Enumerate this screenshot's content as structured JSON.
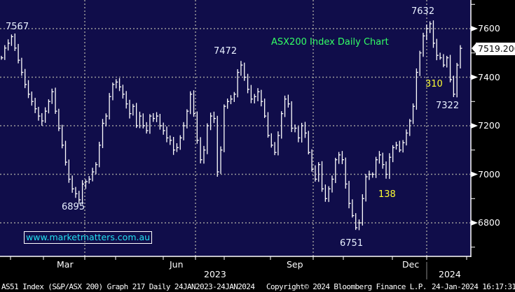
{
  "chart_data": {
    "type": "line",
    "title": "ASX200 Index Daily Chart",
    "ylim": [
      6662,
      7718
    ],
    "yticks": [
      6800,
      7000,
      7200,
      7400,
      7600
    ],
    "yticks_labels": [
      "6800",
      "7000",
      "7200",
      "7400",
      "7600"
    ],
    "xticks_labels": [
      "Mar",
      "Jun",
      "Sep",
      "Dec"
    ],
    "year_labels": [
      "2023",
      "2024"
    ],
    "grid": true,
    "last_price": "7519.200",
    "closes": [
      7480,
      7520,
      7540,
      7567,
      7520,
      7470,
      7420,
      7370,
      7330,
      7300,
      7270,
      7240,
      7220,
      7260,
      7300,
      7340,
      7260,
      7190,
      7120,
      7050,
      6980,
      6940,
      6920,
      6895,
      6960,
      6970,
      6980,
      7010,
      7040,
      7120,
      7210,
      7240,
      7320,
      7370,
      7380,
      7360,
      7330,
      7290,
      7250,
      7280,
      7200,
      7240,
      7200,
      7180,
      7240,
      7230,
      7240,
      7200,
      7180,
      7150,
      7140,
      7100,
      7110,
      7150,
      7200,
      7260,
      7330,
      7250,
      7140,
      7060,
      7100,
      7200,
      7240,
      7230,
      7010,
      7100,
      7280,
      7300,
      7310,
      7330,
      7420,
      7450,
      7400,
      7350,
      7310,
      7320,
      7340,
      7300,
      7240,
      7160,
      7120,
      7090,
      7160,
      7250,
      7310,
      7290,
      7190,
      7190,
      7150,
      7200,
      7170,
      7090,
      7020,
      6980,
      7040,
      6940,
      6900,
      6940,
      6980,
      7060,
      7080,
      7060,
      6960,
      6880,
      6830,
      6780,
      6800,
      6900,
      6990,
      7000,
      7000,
      7060,
      7080,
      7040,
      7000,
      7070,
      7110,
      7120,
      7100,
      7130,
      7170,
      7220,
      7280,
      7420,
      7500,
      7570,
      7600,
      7620,
      7540,
      7490,
      7480,
      7450,
      7480,
      7390,
      7330,
      7450,
      7519
    ],
    "annotations": {
      "high_jan": "7567",
      "low_mar": "6895",
      "high_jul": "7472",
      "low_oct": "6751",
      "high_dec": "7632",
      "low_jan": "7322",
      "move_310": "310",
      "move_138": "138"
    }
  },
  "watermark": "www.marketmatters.com.au",
  "footer": {
    "security": "AS51 Index (S&P/ASX 200) Graph 217  Daily 24JAN2023-24JAN2024",
    "copyright": "Copyright© 2024 Bloomberg Finance L.P.",
    "timestamp": "24-Jan-2024 16:17:31"
  },
  "colors": {
    "background": "#100d4a",
    "price": "#ffffff",
    "title": "#33ff66",
    "move_labels": "#ffff33",
    "watermark": "#22e0f0"
  }
}
